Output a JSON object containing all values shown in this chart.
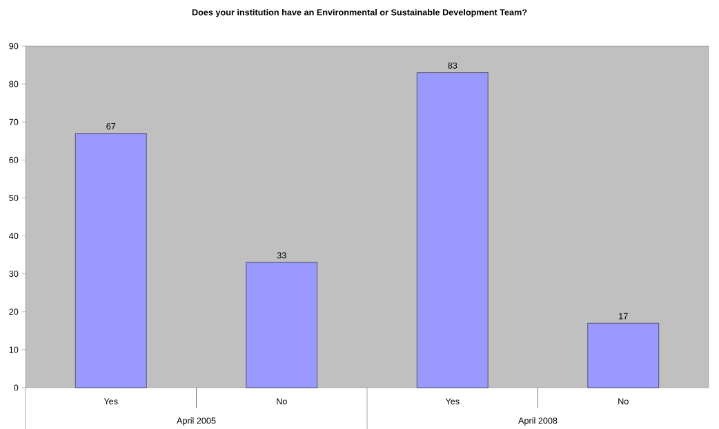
{
  "chart_data": {
    "type": "bar",
    "title": "Does your institution have an Environmental or Sustainable Development Team?",
    "categories": [
      "Yes",
      "No",
      "Yes",
      "No"
    ],
    "values": [
      67,
      33,
      83,
      17
    ],
    "color": "#9999ff",
    "ylim": [
      0,
      90
    ],
    "yticks": [
      0,
      10,
      20,
      30,
      40,
      50,
      60,
      70,
      80,
      90
    ],
    "data_labels": true,
    "annotations": [
      "April 2005",
      "April 2008"
    ]
  }
}
